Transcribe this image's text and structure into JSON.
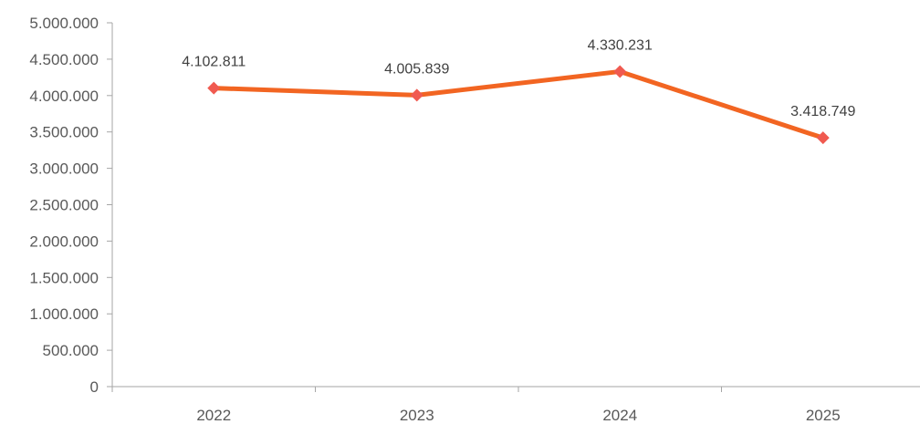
{
  "chart_data": {
    "type": "line",
    "categories": [
      "2022",
      "2023",
      "2024",
      "2025"
    ],
    "series": [
      {
        "values": [
          4102811,
          4005839,
          4330231,
          3418749
        ],
        "labels": [
          "4.102.811",
          "4.005.839",
          "4.330.231",
          "3.418.749"
        ],
        "color": "#f26522",
        "marker_color": "#f05a50"
      }
    ],
    "ylim": [
      0,
      5000000
    ],
    "y_ticks": [
      0,
      500000,
      1000000,
      1500000,
      2000000,
      2500000,
      3000000,
      3500000,
      4000000,
      4500000,
      5000000
    ],
    "y_tick_labels": [
      "0",
      "500.000",
      "1.000.000",
      "1.500.000",
      "2.000.000",
      "2.500.000",
      "3.000.000",
      "3.500.000",
      "4.000.000",
      "4.500.000",
      "5.000.000"
    ],
    "title": "",
    "xlabel": "",
    "ylabel": "",
    "grid": false,
    "legend": "none"
  }
}
